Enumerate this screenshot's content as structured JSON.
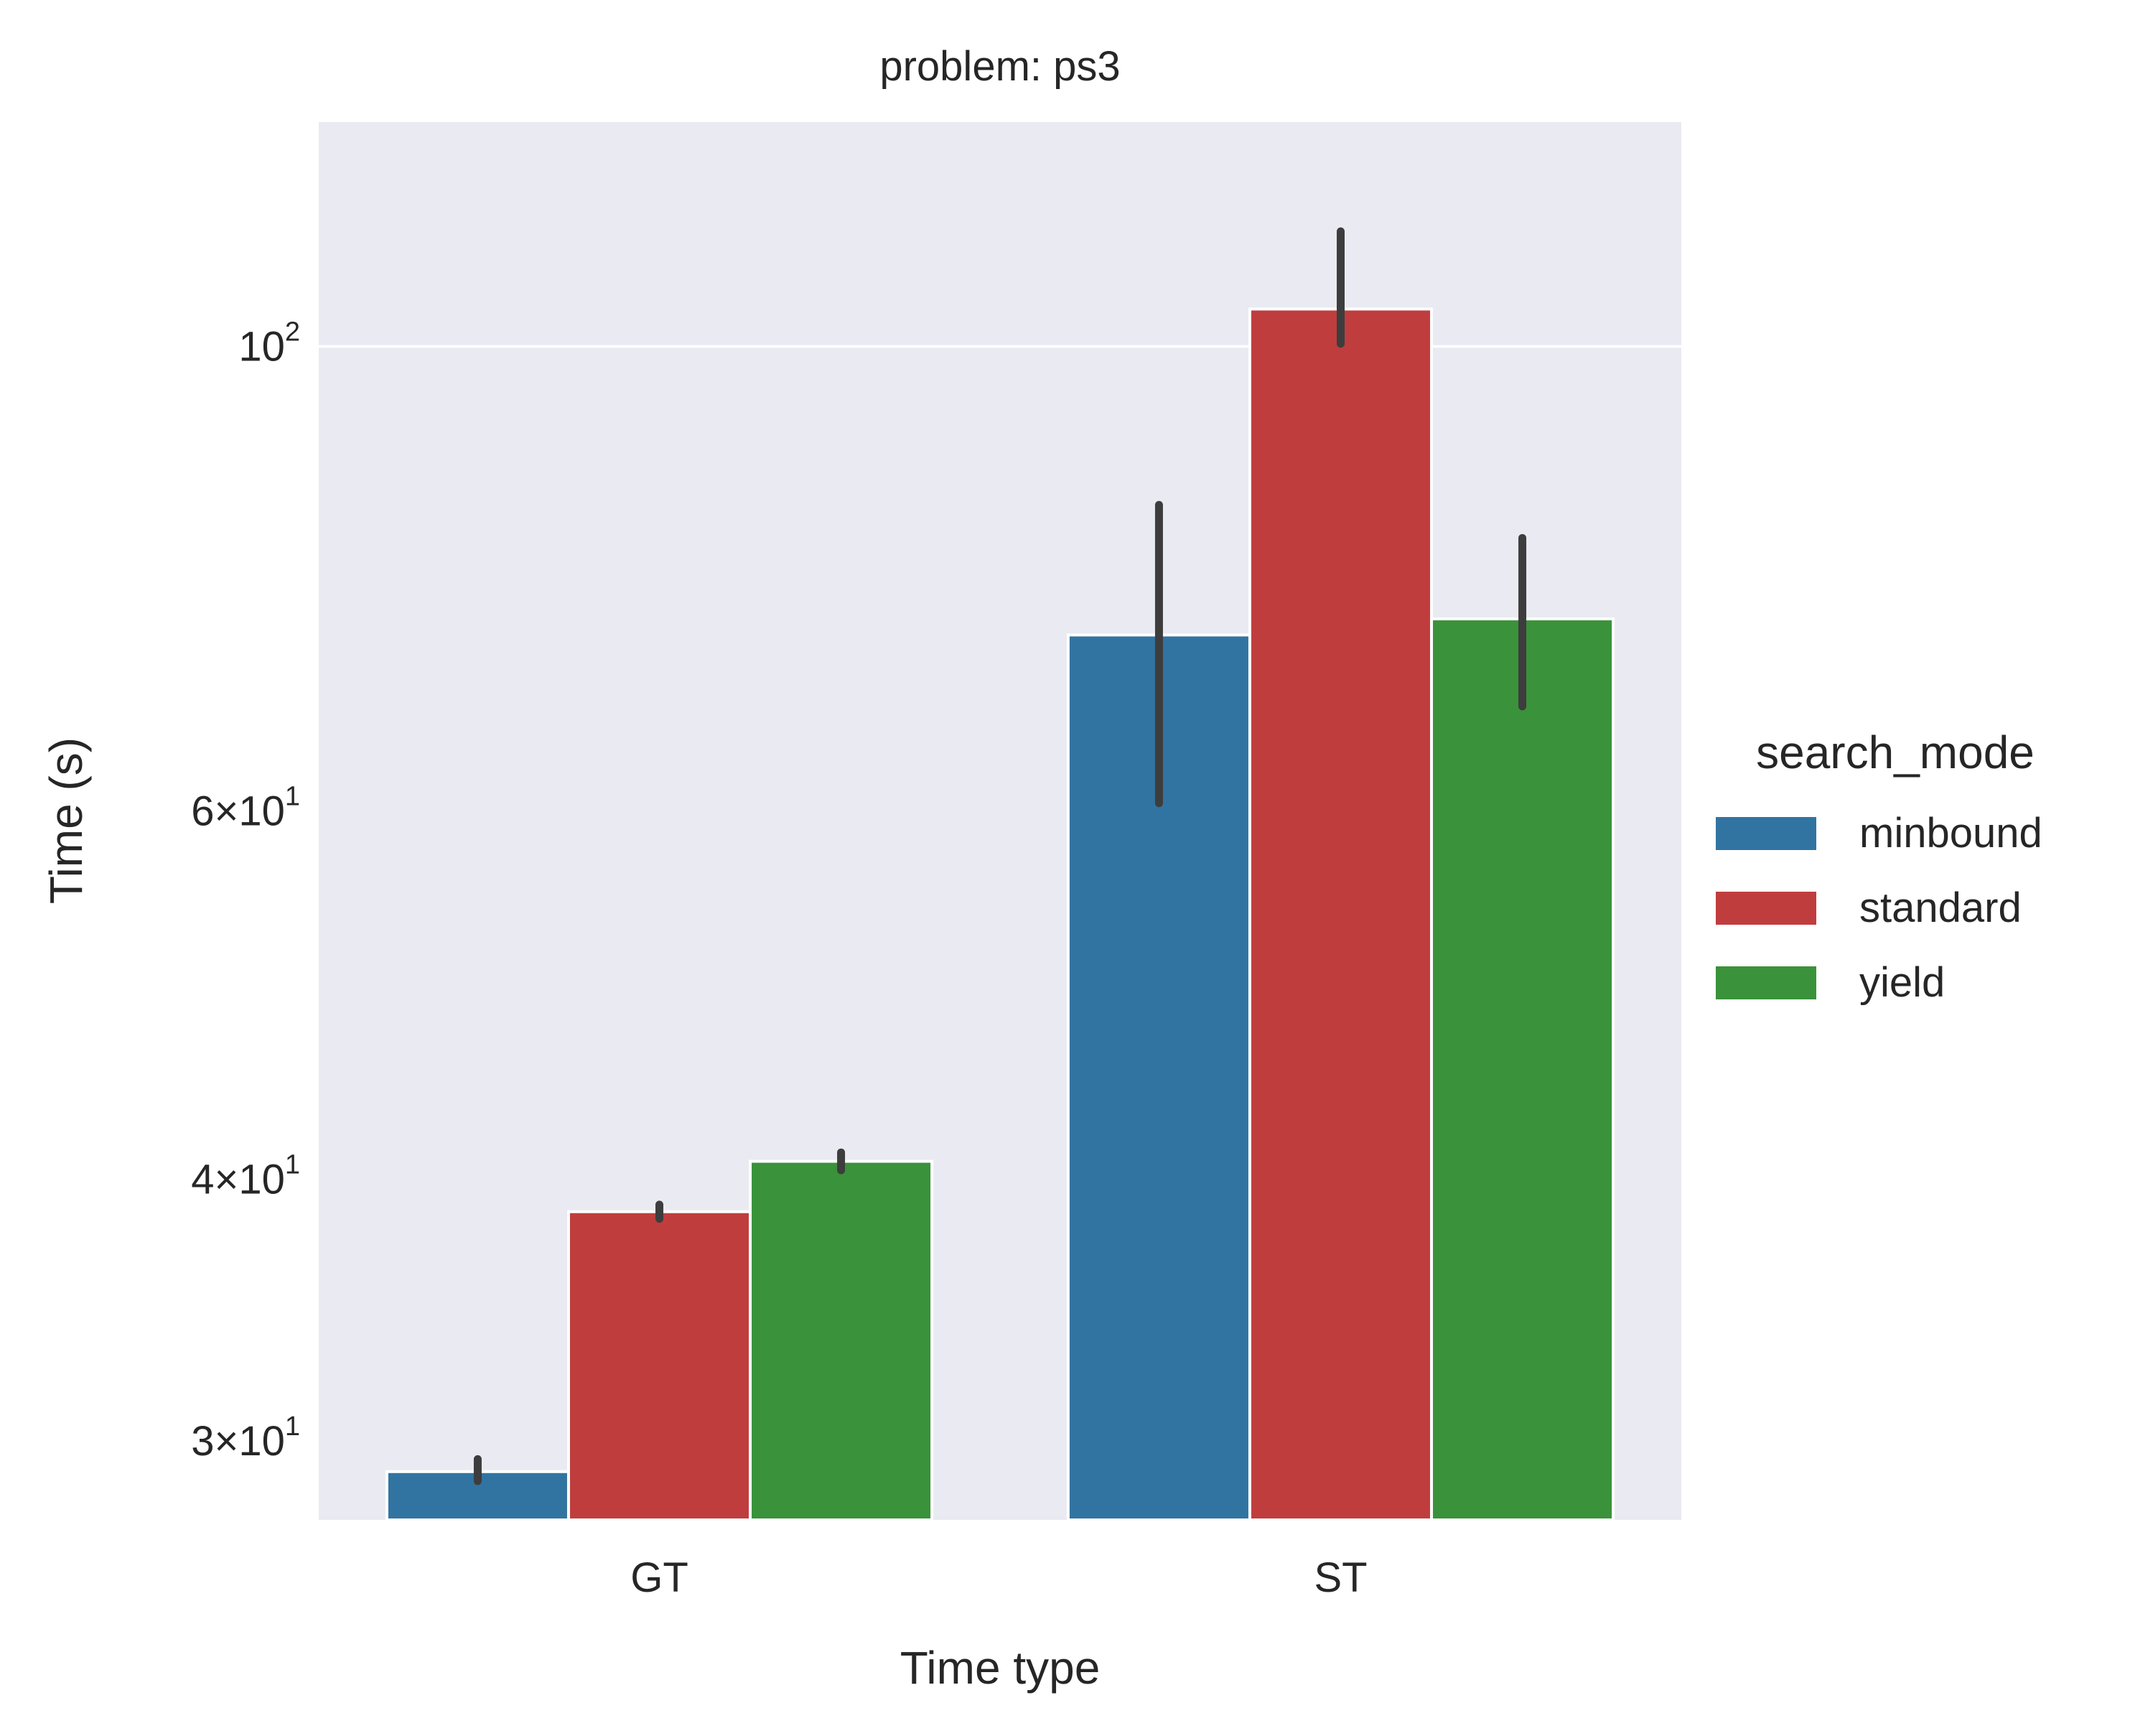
{
  "chart_data": {
    "type": "bar",
    "title": "problem: ps3",
    "xlabel": "Time type",
    "ylabel": "Time (s)",
    "yscale": "log",
    "ylim": [
      27.5,
      128
    ],
    "grid": true,
    "legend": {
      "title": "search_mode",
      "placement": "right"
    },
    "categories": [
      "GT",
      "ST"
    ],
    "yticks": [
      {
        "value": 30,
        "mantissa": "3",
        "base": "10",
        "exponent": "1"
      },
      {
        "value": 40,
        "mantissa": "4",
        "base": "10",
        "exponent": "1"
      },
      {
        "value": 60,
        "mantissa": "6",
        "base": "10",
        "exponent": "1"
      },
      {
        "value": 100,
        "mantissa": "",
        "base": "10",
        "exponent": "2"
      }
    ],
    "series": [
      {
        "name": "minbound",
        "color": "#3274a1",
        "values": [
          29.0,
          72.8
        ],
        "errors": [
          [
            28.7,
            29.4
          ],
          [
            60.5,
            84.0
          ]
        ]
      },
      {
        "name": "standard",
        "color": "#c03d3e",
        "values": [
          38.6,
          104.2
        ],
        "errors": [
          [
            38.3,
            38.9
          ],
          [
            100.3,
            113.5
          ]
        ]
      },
      {
        "name": "yield",
        "color": "#3a923a",
        "values": [
          40.8,
          74.1
        ],
        "errors": [
          [
            40.4,
            41.2
          ],
          [
            67.3,
            81.0
          ]
        ]
      }
    ]
  }
}
